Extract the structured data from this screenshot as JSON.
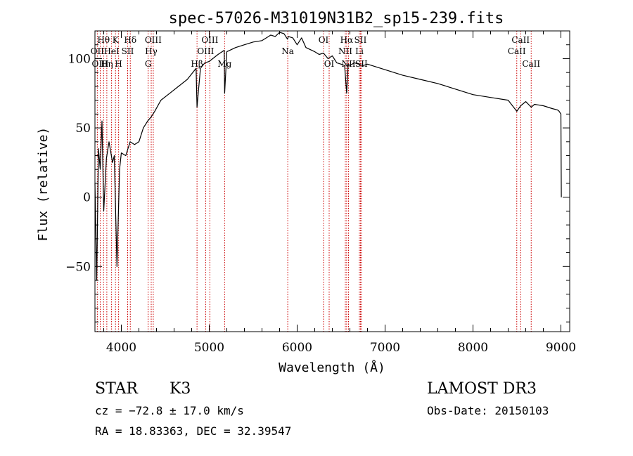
{
  "chart_data": {
    "type": "line",
    "title": "spec-57026-M31019N31B2_sp15-239.fits",
    "xlabel": "Wavelength (Å)",
    "ylabel": "Flux (relative)",
    "xlim": [
      3700,
      9100
    ],
    "ylim": [
      -97,
      120
    ],
    "xticks": [
      4000,
      5000,
      6000,
      7000,
      8000,
      9000
    ],
    "yticks": [
      -50,
      0,
      50,
      100
    ],
    "grid": false,
    "series": [
      {
        "name": "flux",
        "x": [
          3700,
          3720,
          3740,
          3760,
          3780,
          3800,
          3830,
          3860,
          3900,
          3920,
          3950,
          3980,
          4000,
          4050,
          4100,
          4150,
          4200,
          4250,
          4300,
          4340,
          4380,
          4450,
          4550,
          4650,
          4750,
          4850,
          4861,
          4900,
          4950,
          5000,
          5100,
          5170,
          5175,
          5200,
          5300,
          5400,
          5500,
          5600,
          5700,
          5750,
          5800,
          5850,
          5890,
          5900,
          5950,
          6000,
          6050,
          6100,
          6200,
          6250,
          6300,
          6350,
          6400,
          6450,
          6500,
          6540,
          6563,
          6580,
          6600,
          6650,
          6700,
          6750,
          6800,
          7000,
          7200,
          7400,
          7600,
          7800,
          8000,
          8200,
          8400,
          8498,
          8542,
          8600,
          8662,
          8700,
          8800,
          8900,
          8960,
          8980,
          9000,
          9005
        ],
        "y": [
          10,
          -60,
          35,
          20,
          55,
          -10,
          28,
          40,
          25,
          30,
          -50,
          20,
          32,
          30,
          40,
          38,
          40,
          50,
          55,
          58,
          62,
          70,
          75,
          80,
          85,
          93,
          65,
          93,
          97,
          98,
          103,
          106,
          75,
          105,
          108,
          110,
          112,
          113,
          117,
          116,
          119,
          118,
          114,
          116,
          115,
          110,
          115,
          108,
          105,
          103,
          104,
          100,
          102,
          97,
          96,
          95,
          75,
          96,
          95,
          97,
          96,
          95,
          96,
          92,
          88,
          85,
          82,
          78,
          74,
          72,
          70,
          62,
          66,
          69,
          65,
          67,
          66,
          64,
          63,
          62,
          60,
          0
        ]
      }
    ],
    "lines": [
      {
        "name": "Hθ",
        "wave": 3798,
        "row": 1
      },
      {
        "name": "OII",
        "wave": 3727,
        "row": 2
      },
      {
        "name": "OIII",
        "wave": 3760,
        "row": 3
      },
      {
        "name": "K",
        "wave": 3934,
        "row": 1
      },
      {
        "name": "HeI",
        "wave": 3889,
        "row": 2
      },
      {
        "name": "Hη",
        "wave": 3835,
        "row": 3
      },
      {
        "name": "H",
        "wave": 3969,
        "row": 3
      },
      {
        "name": "Hδ",
        "wave": 4102,
        "row": 1
      },
      {
        "name": "SII",
        "wave": 4072,
        "row": 2
      },
      {
        "name": "OIII",
        "wave": 4363,
        "row": 1
      },
      {
        "name": "Hγ",
        "wave": 4340,
        "row": 2
      },
      {
        "name": "G",
        "wave": 4305,
        "row": 3
      },
      {
        "name": "Hβ",
        "wave": 4861,
        "row": 3
      },
      {
        "name": "OIII",
        "wave": 5007,
        "row": 1
      },
      {
        "name": "OIII",
        "wave": 4959,
        "row": 2
      },
      {
        "name": "Mg",
        "wave": 5175,
        "row": 3
      },
      {
        "name": "Na",
        "wave": 5893,
        "row": 2
      },
      {
        "name": "OI",
        "wave": 6300,
        "row": 1
      },
      {
        "name": "OI",
        "wave": 6364,
        "row": 3
      },
      {
        "name": "Hα",
        "wave": 6563,
        "row": 1
      },
      {
        "name": "SII",
        "wave": 6720,
        "row": 1
      },
      {
        "name": "NII",
        "wave": 6548,
        "row": 2
      },
      {
        "name": "Li",
        "wave": 6708,
        "row": 2
      },
      {
        "name": "NII",
        "wave": 6584,
        "row": 3
      },
      {
        "name": "SII",
        "wave": 6731,
        "row": 3
      },
      {
        "name": "CaII",
        "wave": 8542,
        "row": 1
      },
      {
        "name": "CaII",
        "wave": 8498,
        "row": 2
      },
      {
        "name": "CaII",
        "wave": 8662,
        "row": 3
      }
    ]
  },
  "info": {
    "class_label": "STAR",
    "subclass": "K3",
    "survey": "LAMOST DR3",
    "cz": "cz = −72.8 ± 17.0 km/s",
    "obs_date": "Obs-Date: 20150103",
    "coords": "RA =  18.83363, DEC =  32.39547"
  },
  "colors": {
    "spectrum": "#000000",
    "line_marker": "#cc0000",
    "axis": "#000000"
  }
}
